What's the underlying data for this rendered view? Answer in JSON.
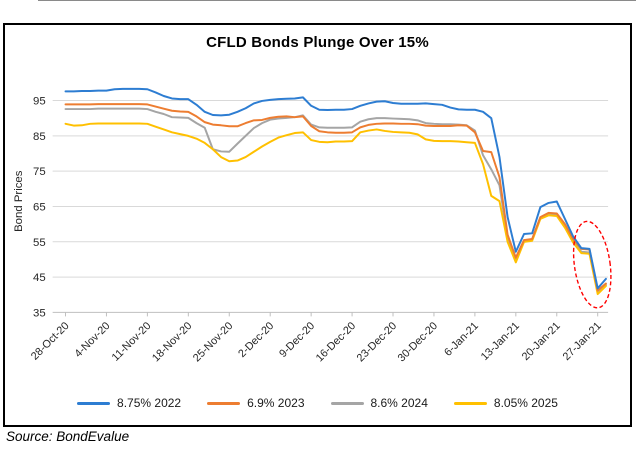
{
  "title": "CFLD Bonds Plunge Over 15%",
  "source_caption": "Source: BondEvalue",
  "colors": {
    "grid": "#d9d9d9",
    "axis": "#bfbfbf",
    "label_text": "#262626",
    "annotation_red": "#ff0000",
    "frame": "#000000"
  },
  "chart_data": {
    "type": "line",
    "title": "CFLD Bonds Plunge Over 15%",
    "xlabel": "",
    "ylabel": "Bond Prices",
    "ylim": [
      35,
      100
    ],
    "yticks": [
      35,
      45,
      55,
      65,
      75,
      85,
      95
    ],
    "grid": "horizontal",
    "legend_position": "bottom",
    "x_tick_every": 5,
    "x_tick_labels": [
      "28-Oct-20",
      "4-Nov-20",
      "11-Nov-20",
      "18-Nov-20",
      "25-Nov-20",
      "2-Dec-20",
      "9-Dec-20",
      "16-Dec-20",
      "23-Dec-20",
      "30-Dec-20",
      "6-Jan-21",
      "13-Jan-21",
      "20-Jan-21",
      "27-Jan-21"
    ],
    "x": [
      "28-Oct-20",
      "29-Oct-20",
      "30-Oct-20",
      "2-Nov-20",
      "3-Nov-20",
      "4-Nov-20",
      "5-Nov-20",
      "6-Nov-20",
      "9-Nov-20",
      "10-Nov-20",
      "11-Nov-20",
      "12-Nov-20",
      "13-Nov-20",
      "16-Nov-20",
      "17-Nov-20",
      "18-Nov-20",
      "19-Nov-20",
      "20-Nov-20",
      "23-Nov-20",
      "24-Nov-20",
      "25-Nov-20",
      "26-Nov-20",
      "27-Nov-20",
      "30-Nov-20",
      "1-Dec-20",
      "2-Dec-20",
      "3-Dec-20",
      "4-Dec-20",
      "7-Dec-20",
      "8-Dec-20",
      "9-Dec-20",
      "10-Dec-20",
      "11-Dec-20",
      "14-Dec-20",
      "15-Dec-20",
      "16-Dec-20",
      "17-Dec-20",
      "18-Dec-20",
      "21-Dec-20",
      "22-Dec-20",
      "23-Dec-20",
      "24-Dec-20",
      "25-Dec-20",
      "28-Dec-20",
      "29-Dec-20",
      "30-Dec-20",
      "31-Dec-20",
      "1-Jan-21",
      "4-Jan-21",
      "5-Jan-21",
      "6-Jan-21",
      "7-Jan-21",
      "8-Jan-21",
      "11-Jan-21",
      "12-Jan-21",
      "13-Jan-21",
      "14-Jan-21",
      "15-Jan-21",
      "18-Jan-21",
      "19-Jan-21",
      "20-Jan-21",
      "21-Jan-21",
      "22-Jan-21",
      "25-Jan-21",
      "26-Jan-21",
      "27-Jan-21",
      "28-Jan-21"
    ],
    "series": [
      {
        "name": "8.75% 2022",
        "color": "#2d7dd2",
        "values": [
          97.6,
          97.6,
          97.7,
          97.7,
          97.8,
          97.8,
          98.2,
          98.3,
          98.3,
          98.3,
          98.2,
          97.3,
          96.3,
          95.6,
          95.4,
          95.4,
          93.8,
          91.8,
          90.9,
          90.8,
          91.0,
          91.8,
          92.8,
          94.2,
          94.9,
          95.2,
          95.4,
          95.5,
          95.6,
          95.9,
          93.5,
          92.4,
          92.3,
          92.4,
          92.4,
          92.6,
          93.5,
          94.2,
          94.7,
          94.8,
          94.3,
          94.1,
          94.1,
          94.1,
          94.2,
          94.0,
          93.8,
          93.0,
          92.5,
          92.4,
          92.4,
          91.8,
          90.0,
          79.0,
          62.0,
          52.2,
          57.2,
          57.4,
          64.8,
          66.0,
          66.4,
          61.5,
          56.5,
          53.2,
          53.0,
          41.8,
          44.5
        ]
      },
      {
        "name": "6.9% 2023",
        "color": "#ed7d31",
        "values": [
          93.9,
          93.9,
          93.9,
          93.9,
          94.0,
          94.0,
          94.0,
          94.0,
          94.0,
          94.0,
          93.9,
          93.3,
          92.7,
          92.1,
          91.9,
          91.8,
          90.5,
          88.9,
          88.2,
          88.0,
          87.7,
          87.7,
          88.6,
          89.4,
          89.5,
          90.1,
          90.4,
          90.5,
          90.3,
          90.5,
          87.8,
          86.3,
          86.0,
          85.9,
          85.9,
          86.0,
          87.4,
          88.1,
          88.4,
          88.5,
          88.5,
          88.4,
          88.4,
          88.3,
          87.9,
          87.8,
          87.8,
          87.8,
          88.0,
          87.9,
          86.0,
          80.7,
          80.4,
          73.3,
          57.0,
          50.5,
          55.5,
          55.8,
          62.0,
          63.2,
          63.0,
          60.0,
          55.8,
          53.0,
          52.8,
          41.2,
          43.2
        ]
      },
      {
        "name": "8.6% 2024",
        "color": "#a5a5a5",
        "values": [
          92.6,
          92.6,
          92.6,
          92.6,
          92.7,
          92.7,
          92.7,
          92.7,
          92.7,
          92.7,
          92.6,
          91.8,
          91.2,
          90.3,
          90.2,
          90.1,
          88.6,
          87.3,
          81.2,
          80.6,
          80.5,
          82.8,
          85.0,
          87.2,
          88.6,
          89.6,
          89.9,
          90.1,
          90.3,
          90.8,
          88.2,
          87.4,
          87.3,
          87.3,
          87.3,
          87.4,
          89.0,
          89.7,
          90.0,
          90.0,
          89.9,
          89.8,
          89.7,
          89.4,
          88.6,
          88.4,
          88.3,
          88.3,
          88.2,
          88.0,
          86.5,
          79.5,
          75.5,
          71.0,
          56.0,
          50.2,
          55.4,
          55.6,
          61.8,
          62.8,
          62.6,
          59.5,
          55.2,
          52.2,
          52.0,
          40.8,
          42.8
        ]
      },
      {
        "name": "8.05% 2025",
        "color": "#ffc000",
        "values": [
          88.4,
          87.9,
          88.0,
          88.4,
          88.5,
          88.5,
          88.5,
          88.5,
          88.5,
          88.5,
          88.4,
          87.6,
          86.8,
          86.0,
          85.5,
          85.0,
          84.2,
          83.0,
          81.2,
          79.0,
          77.8,
          78.0,
          79.0,
          80.5,
          82.0,
          83.3,
          84.5,
          85.2,
          85.8,
          86.0,
          83.8,
          83.3,
          83.2,
          83.4,
          83.4,
          83.5,
          86.0,
          86.5,
          86.8,
          86.4,
          86.1,
          86.0,
          85.9,
          85.4,
          84.0,
          83.6,
          83.5,
          83.5,
          83.4,
          83.2,
          83.0,
          77.0,
          68.0,
          66.5,
          55.0,
          49.2,
          55.0,
          55.3,
          61.5,
          62.5,
          62.3,
          59.0,
          54.8,
          51.8,
          51.6,
          40.2,
          42.5
        ]
      }
    ],
    "annotation": {
      "type": "dashed-ellipse",
      "color": "#ff0000",
      "note": "circles the final price drop near 27-Jan-21",
      "center_x_label": "27-Jan-21",
      "center_value": 47
    }
  }
}
